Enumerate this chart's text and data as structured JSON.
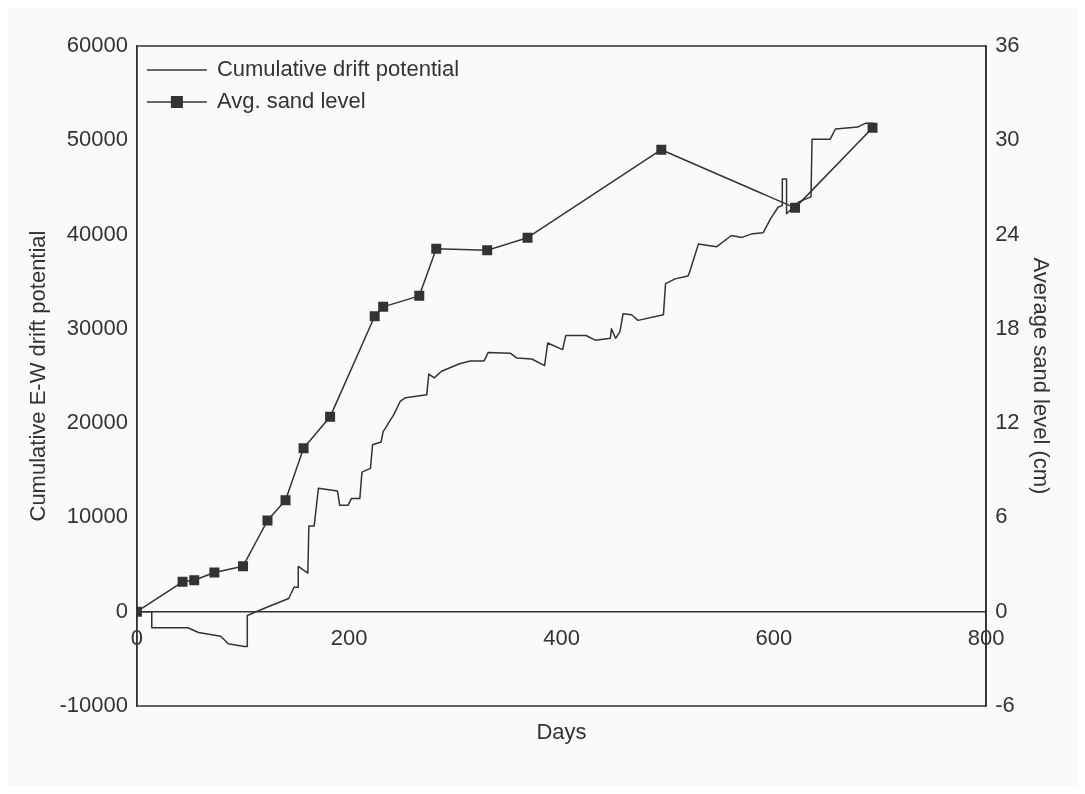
{
  "chart_data": {
    "type": "line",
    "xlabel": "Days",
    "ylabel": "Cumulative E-W drift potential",
    "y2label": "Average sand level (cm)",
    "xlim": [
      0,
      800
    ],
    "xticks": [
      0,
      200,
      400,
      600,
      800
    ],
    "ylim": [
      -10000,
      60000
    ],
    "yticks": [
      -10000,
      0,
      10000,
      20000,
      30000,
      40000,
      50000,
      60000
    ],
    "y2lim": [
      -6,
      36
    ],
    "y2ticks": [
      -6,
      0,
      6,
      12,
      18,
      24,
      30,
      36
    ],
    "grid": false,
    "legend": "top left",
    "series": [
      {
        "name": "Cumulative drift potential",
        "color": "#333333",
        "marker": "none",
        "x": [
          0,
          14,
          14,
          48,
          58,
          79,
          86,
          101,
          104,
          104,
          123,
          143,
          148,
          152,
          152,
          161,
          162,
          167,
          171,
          189,
          191,
          199,
          202,
          210,
          212,
          220,
          222,
          230,
          232,
          242,
          248,
          253,
          273,
          275,
          280,
          287,
          304,
          314,
          327,
          331,
          352,
          358,
          372,
          384,
          387,
          401,
          404,
          423,
          432,
          446,
          447,
          451,
          455,
          458,
          466,
          472,
          496,
          498,
          507,
          519,
          520,
          529,
          546,
          560,
          570,
          580,
          590,
          597,
          604,
          608,
          608,
          612,
          612,
          624,
          635,
          636,
          653,
          658,
          679,
          686,
          694
        ],
        "values": [
          0,
          0,
          -1700,
          -1700,
          -2200,
          -2600,
          -3400,
          -3700,
          -3700,
          -400,
          500,
          1400,
          2600,
          2600,
          4800,
          4100,
          9100,
          9100,
          13100,
          12800,
          11300,
          11300,
          12000,
          12000,
          14800,
          15200,
          17700,
          18000,
          19100,
          20900,
          22300,
          22700,
          23000,
          25200,
          24800,
          25500,
          26300,
          26600,
          26600,
          27500,
          27400,
          26900,
          26800,
          26100,
          28500,
          27800,
          29300,
          29300,
          28800,
          29000,
          30000,
          29000,
          29700,
          31600,
          31500,
          30900,
          31500,
          34800,
          35300,
          35600,
          35800,
          39000,
          38700,
          39900,
          39700,
          40100,
          40200,
          41700,
          42900,
          43100,
          45900,
          45900,
          42200,
          43500,
          44000,
          50100,
          50100,
          51200,
          51400,
          51800,
          51800
        ]
      },
      {
        "name": "Avg. sand level",
        "color": "#333333",
        "marker": "square",
        "axis": "y2",
        "x": [
          0,
          43,
          54,
          73,
          100,
          123,
          140,
          157,
          182,
          224,
          232,
          266,
          282,
          330,
          368,
          494,
          620,
          693
        ],
        "values": [
          0,
          1.9,
          2.0,
          2.5,
          2.9,
          5.8,
          7.1,
          10.4,
          12.4,
          18.8,
          19.4,
          20.1,
          23.1,
          23.0,
          23.8,
          29.4,
          25.7,
          30.8
        ]
      }
    ]
  }
}
